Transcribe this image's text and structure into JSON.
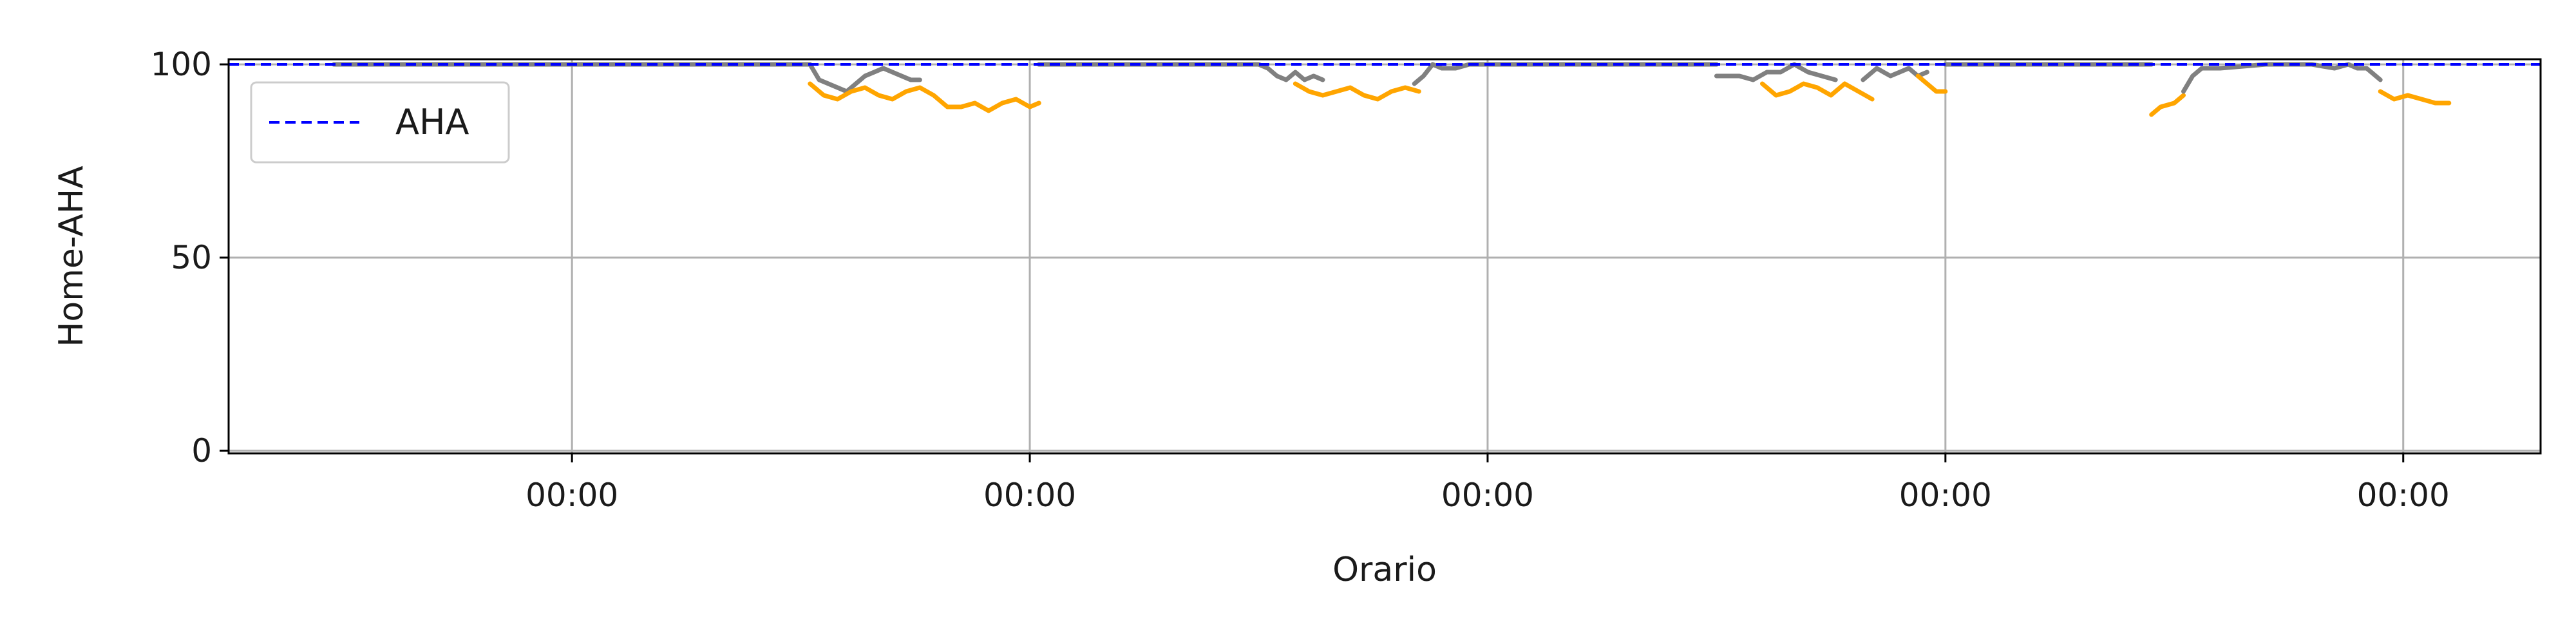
{
  "chart_data": {
    "type": "line",
    "title": "",
    "xlabel": "Orario",
    "ylabel": "Home-AHA",
    "ylim": [
      0,
      100
    ],
    "yticks": [
      0,
      50,
      100
    ],
    "xlim": [
      -0.75,
      4.3
    ],
    "xticks": [
      0,
      1,
      2,
      3,
      4
    ],
    "xtick_labels": [
      "00:00",
      "00:00",
      "00:00",
      "00:00",
      "00:00"
    ],
    "grid": true,
    "legend": {
      "placement": "top-left",
      "entries": [
        "AHA"
      ]
    },
    "reference_line": {
      "name": "AHA",
      "value": 100,
      "color": "#0000ff",
      "style": "dashed"
    },
    "series": [
      {
        "color": "#808080",
        "x": [
          -0.52,
          -0.3,
          -0.1,
          0.1,
          0.3,
          0.5
        ],
        "y": [
          100,
          100,
          100,
          100,
          100,
          100
        ]
      },
      {
        "color": "#808080",
        "x": [
          0.5,
          0.52,
          0.54,
          0.56,
          0.58,
          0.6,
          0.62,
          0.64,
          0.66,
          0.68,
          0.7,
          0.72,
          0.74,
          0.76
        ],
        "y": [
          100,
          100,
          96,
          95,
          94,
          93,
          95,
          97,
          98,
          99,
          98,
          97,
          96,
          96
        ]
      },
      {
        "color": "#ffa500",
        "x": [
          0.52,
          0.55,
          0.58,
          0.61,
          0.64,
          0.67,
          0.7,
          0.73,
          0.76,
          0.79,
          0.82,
          0.85,
          0.88,
          0.91,
          0.94,
          0.97,
          1.0,
          1.02
        ],
        "y": [
          95,
          92,
          91,
          93,
          94,
          92,
          91,
          93,
          94,
          92,
          89,
          89,
          90,
          88,
          90,
          91,
          89,
          90
        ]
      },
      {
        "color": "#808080",
        "x": [
          1.02,
          1.2,
          1.4,
          1.5,
          1.52,
          1.54,
          1.56,
          1.58,
          1.6,
          1.62,
          1.64
        ],
        "y": [
          100,
          100,
          100,
          100,
          99,
          97,
          96,
          98,
          96,
          97,
          96
        ]
      },
      {
        "color": "#ffa500",
        "x": [
          1.58,
          1.61,
          1.64,
          1.67,
          1.7,
          1.73,
          1.76,
          1.79,
          1.82,
          1.85
        ],
        "y": [
          95,
          93,
          92,
          93,
          94,
          92,
          91,
          93,
          94,
          93
        ]
      },
      {
        "color": "#808080",
        "x": [
          1.84,
          1.86,
          1.88,
          1.9,
          1.93,
          1.96,
          2.0,
          2.2,
          2.4,
          2.5
        ],
        "y": [
          95,
          97,
          100,
          99,
          99,
          100,
          100,
          100,
          100,
          100
        ]
      },
      {
        "color": "#808080",
        "x": [
          2.5,
          2.52,
          2.55,
          2.58,
          2.61,
          2.64,
          2.67,
          2.7,
          2.73,
          2.76
        ],
        "y": [
          97,
          97,
          97,
          96,
          98,
          98,
          100,
          98,
          97,
          96
        ]
      },
      {
        "color": "#ffa500",
        "x": [
          2.6,
          2.63,
          2.66,
          2.69,
          2.72,
          2.75,
          2.78,
          2.81,
          2.84
        ],
        "y": [
          95,
          92,
          93,
          95,
          94,
          92,
          95,
          93,
          91
        ]
      },
      {
        "color": "#808080",
        "x": [
          2.82,
          2.85,
          2.88,
          2.9,
          2.92,
          2.94,
          2.96
        ],
        "y": [
          96,
          99,
          97,
          98,
          99,
          97,
          98
        ]
      },
      {
        "color": "#ffa500",
        "x": [
          2.94,
          2.96,
          2.98,
          3.0
        ],
        "y": [
          97,
          95,
          93,
          93
        ]
      },
      {
        "color": "#808080",
        "x": [
          3.0,
          3.2,
          3.4,
          3.45
        ],
        "y": [
          100,
          100,
          100,
          100
        ]
      },
      {
        "color": "#ffa500",
        "x": [
          3.45,
          3.47,
          3.5,
          3.52
        ],
        "y": [
          87,
          89,
          90,
          92
        ]
      },
      {
        "color": "#808080",
        "x": [
          3.52,
          3.54,
          3.56,
          3.6,
          3.7,
          3.8,
          3.85,
          3.88,
          3.9,
          3.92,
          3.95
        ],
        "y": [
          93,
          97,
          99,
          99,
          100,
          100,
          99,
          100,
          99,
          99,
          96
        ]
      },
      {
        "color": "#ffa500",
        "x": [
          3.95,
          3.98,
          4.01,
          4.04,
          4.07,
          4.1
        ],
        "y": [
          93,
          91,
          92,
          91,
          90,
          90
        ]
      }
    ]
  }
}
